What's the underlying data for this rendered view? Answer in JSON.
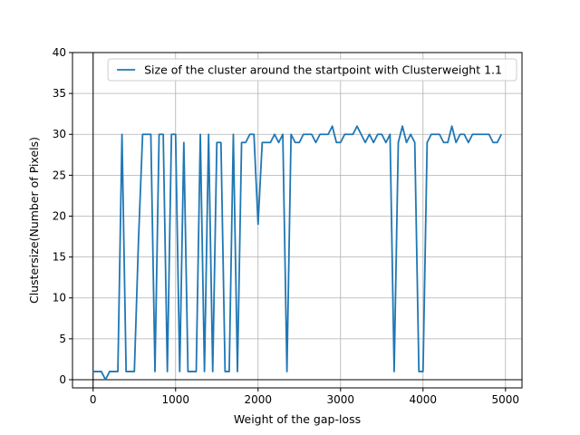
{
  "chart_data": {
    "type": "line",
    "xlabel": "Weight of the gap-loss",
    "ylabel": "Clustersize(Number of Pixels)",
    "xlim": [
      -250,
      5200
    ],
    "ylim": [
      -1,
      40
    ],
    "xticks": [
      0,
      1000,
      2000,
      3000,
      4000,
      5000
    ],
    "yticks": [
      0,
      5,
      10,
      15,
      20,
      25,
      30,
      35,
      40
    ],
    "grid": true,
    "legend_position": "top-right",
    "series": [
      {
        "name": "Size of the cluster around the startpoint with Clusterweight 1.1",
        "color": "#1f77b4",
        "x": [
          0,
          50,
          100,
          150,
          200,
          250,
          300,
          350,
          400,
          450,
          500,
          550,
          600,
          650,
          700,
          750,
          800,
          850,
          900,
          950,
          1000,
          1050,
          1100,
          1150,
          1200,
          1250,
          1300,
          1350,
          1400,
          1450,
          1500,
          1550,
          1600,
          1650,
          1700,
          1750,
          1800,
          1850,
          1900,
          1950,
          2000,
          2050,
          2100,
          2150,
          2200,
          2250,
          2300,
          2350,
          2400,
          2450,
          2500,
          2550,
          2600,
          2650,
          2700,
          2750,
          2800,
          2850,
          2900,
          2950,
          3000,
          3050,
          3100,
          3150,
          3200,
          3250,
          3300,
          3350,
          3400,
          3450,
          3500,
          3550,
          3600,
          3650,
          3700,
          3750,
          3800,
          3850,
          3900,
          3950,
          4000,
          4050,
          4100,
          4150,
          4200,
          4250,
          4300,
          4350,
          4400,
          4450,
          4500,
          4550,
          4600,
          4650,
          4700,
          4750,
          4800,
          4850,
          4900,
          4950
        ],
        "values": [
          1,
          1,
          1,
          0,
          1,
          1,
          1,
          30,
          1,
          1,
          1,
          17,
          30,
          30,
          30,
          1,
          30,
          30,
          1,
          30,
          30,
          1,
          29,
          1,
          1,
          1,
          30,
          1,
          30,
          1,
          29,
          29,
          1,
          1,
          30,
          1,
          29,
          29,
          30,
          30,
          19,
          29,
          29,
          29,
          30,
          29,
          30,
          1,
          30,
          29,
          29,
          30,
          30,
          30,
          29,
          30,
          30,
          30,
          31,
          29,
          29,
          30,
          30,
          30,
          31,
          30,
          29,
          30,
          29,
          30,
          30,
          29,
          30,
          1,
          29,
          31,
          29,
          30,
          29,
          1,
          1,
          29,
          30,
          30,
          30,
          29,
          29,
          31,
          29,
          30,
          30,
          29,
          30,
          30,
          30,
          30,
          30,
          29,
          29,
          30
        ]
      }
    ]
  }
}
